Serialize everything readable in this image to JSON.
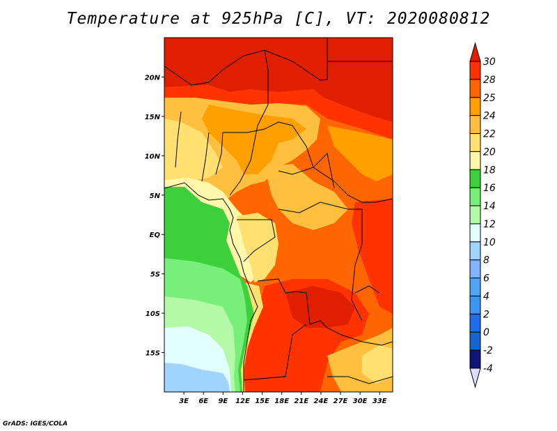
{
  "title": "Temperature at 925hPa [C], VT: 2020080812",
  "credit": "GrADS: IGES/COLA",
  "map": {
    "lon_range": [
      0,
      35
    ],
    "lat_range": [
      -20,
      25
    ],
    "x_ticks": [
      "3E",
      "6E",
      "9E",
      "12E",
      "15E",
      "18E",
      "21E",
      "24E",
      "27E",
      "30E",
      "33E"
    ],
    "x_tick_values": [
      3,
      6,
      9,
      12,
      15,
      18,
      21,
      24,
      27,
      30,
      33
    ],
    "y_ticks": [
      "20N",
      "15N",
      "10N",
      "5N",
      "EQ",
      "5S",
      "10S",
      "15S"
    ],
    "y_tick_values": [
      20,
      15,
      10,
      5,
      0,
      -5,
      -10,
      -15
    ]
  },
  "colorbar": {
    "labels": [
      "30",
      "28",
      "25",
      "24",
      "22",
      "20",
      "18",
      "16",
      "14",
      "12",
      "10",
      "8",
      "6",
      "4",
      "2",
      "0",
      "-2",
      "-4"
    ],
    "top_arrow_color": "#e01e00",
    "bottom_arrow_color": "#dcdcff",
    "colors": [
      "#ff3300",
      "#ff6600",
      "#ffa000",
      "#ffc040",
      "#ffe070",
      "#fff7aa",
      "#3cd13c",
      "#78ef78",
      "#b4f9a8",
      "#e1ffff",
      "#a0d4ff",
      "#80b4ff",
      "#50a5f5",
      "#3c96f0",
      "#1e6eeb",
      "#1464d2",
      "#0f1478"
    ]
  }
}
